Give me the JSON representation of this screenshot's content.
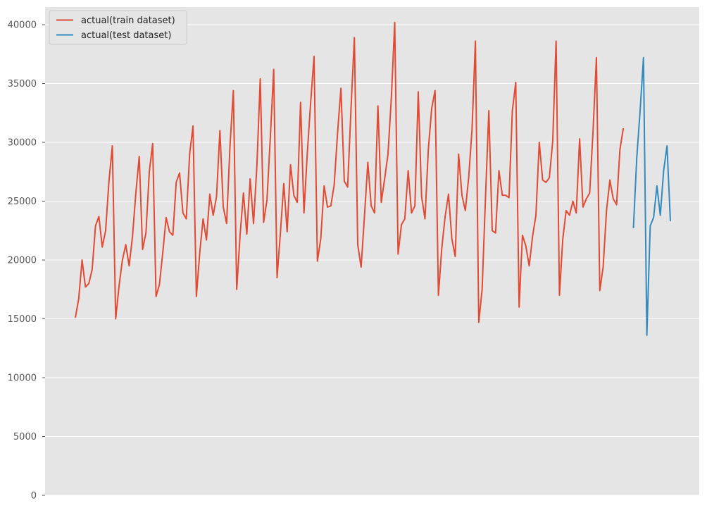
{
  "chart_data": {
    "type": "line",
    "title": "",
    "xlabel": "",
    "ylabel": "",
    "ylim": [
      0,
      41500
    ],
    "yticks": [
      0,
      5000,
      10000,
      15000,
      20000,
      25000,
      30000,
      35000,
      40000
    ],
    "grid": true,
    "legend_position": "top-left",
    "series": [
      {
        "name": "actual(train dataset)",
        "color": "#E24A33",
        "x_start": 0,
        "values": [
          15100,
          16700,
          20000,
          17700,
          18000,
          19200,
          22900,
          23700,
          21100,
          22500,
          26700,
          29700,
          15000,
          17800,
          20000,
          21300,
          19500,
          22000,
          25700,
          28800,
          20900,
          22300,
          27500,
          29900,
          16900,
          17900,
          20600,
          23600,
          22400,
          22100,
          26600,
          27400,
          24000,
          23500,
          29000,
          31400,
          16900,
          20600,
          23500,
          21700,
          25600,
          23800,
          25400,
          31000,
          24500,
          23100,
          29700,
          34400,
          17500,
          22100,
          25700,
          22200,
          26900,
          23100,
          28000,
          35400,
          23200,
          25100,
          30400,
          36200,
          18500,
          22300,
          26500,
          22400,
          28100,
          25500,
          24900,
          33400,
          24000,
          29100,
          33400,
          37300,
          19900,
          21800,
          26300,
          24500,
          24600,
          26400,
          30800,
          34600,
          26700,
          26200,
          32900,
          38900,
          21300,
          19400,
          23700,
          28300,
          24600,
          24000,
          33100,
          24900,
          26900,
          29000,
          33800,
          40200,
          20500,
          23000,
          23500,
          27600,
          24000,
          24600,
          34300,
          25400,
          23500,
          29400,
          32900,
          34400,
          17000,
          21000,
          23700,
          25600,
          21800,
          20300,
          29000,
          25500,
          24200,
          27000,
          31100,
          38600,
          14700,
          17500,
          25300,
          32700,
          22500,
          22300,
          27600,
          25500,
          25500,
          25300,
          32700,
          35100,
          16000,
          22100,
          21200,
          19500,
          22000,
          23800,
          30000,
          26800,
          26600,
          27000,
          30100,
          38600,
          17000,
          21800,
          24200,
          23800,
          25000,
          24000,
          30300,
          24500,
          25200,
          25700,
          31000,
          37200,
          17400,
          19400,
          24200,
          26800,
          25200,
          24700,
          29400,
          31200
        ]
      },
      {
        "name": "actual(test dataset)",
        "color": "#348ABD",
        "x_start": 166,
        "values": [
          22700,
          28700,
          32700,
          37200,
          13600,
          22900,
          23600,
          26300,
          23800,
          27600,
          29700,
          23300
        ]
      }
    ]
  }
}
